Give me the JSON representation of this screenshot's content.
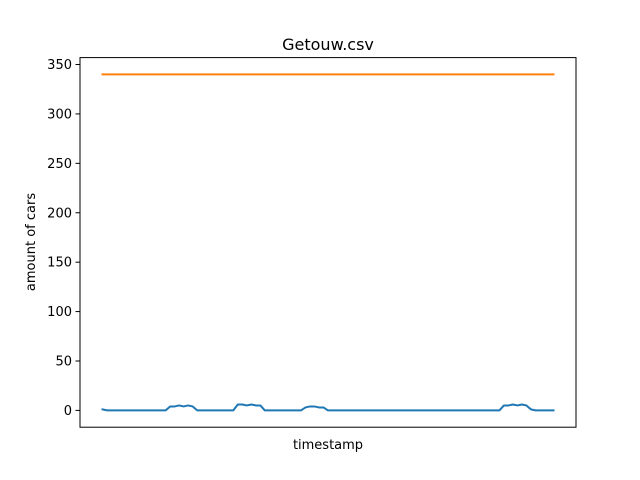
{
  "chart_data": {
    "type": "line",
    "title": "Getouw.csv",
    "xlabel": "timestamp",
    "ylabel": "amount of cars",
    "ylim": [
      -17,
      357
    ],
    "yticks": [
      0,
      50,
      100,
      150,
      200,
      250,
      300,
      350
    ],
    "xticks_shown": false,
    "grid": false,
    "x": [
      0,
      1,
      2,
      3,
      4,
      5,
      6,
      7,
      8,
      9,
      10,
      11,
      12,
      13,
      14,
      15,
      16,
      17,
      18,
      19,
      20,
      21,
      22,
      23,
      24,
      25,
      26,
      27,
      28,
      29,
      30,
      31,
      32,
      33,
      34,
      35,
      36,
      37,
      38,
      39,
      40,
      41,
      42,
      43,
      44,
      45,
      46,
      47,
      48,
      49,
      50,
      51,
      52,
      53,
      54,
      55,
      56,
      57,
      58,
      59,
      60,
      61,
      62,
      63,
      64,
      65,
      66,
      67,
      68,
      69,
      70,
      71,
      72,
      73,
      74,
      75,
      76,
      77,
      78,
      79,
      80,
      81,
      82,
      83,
      84,
      85,
      86,
      87,
      88,
      89,
      90,
      91,
      92,
      93,
      94,
      95,
      96,
      97,
      98,
      99,
      100
    ],
    "series": [
      {
        "color": "#1f77b4",
        "values": [
          1,
          0,
          0,
          0,
          0,
          0,
          0,
          0,
          0,
          0,
          0,
          0,
          0,
          0,
          0,
          4,
          4,
          5,
          4,
          5,
          4,
          0,
          0,
          0,
          0,
          0,
          0,
          0,
          0,
          0,
          6,
          6,
          5,
          6,
          5,
          5,
          0,
          0,
          0,
          0,
          0,
          0,
          0,
          0,
          0,
          3,
          4,
          4,
          3,
          3,
          0,
          0,
          0,
          0,
          0,
          0,
          0,
          0,
          0,
          0,
          0,
          0,
          0,
          0,
          0,
          0,
          0,
          0,
          0,
          0,
          0,
          0,
          0,
          0,
          0,
          0,
          0,
          0,
          0,
          0,
          0,
          0,
          0,
          0,
          0,
          0,
          0,
          0,
          0,
          5,
          5,
          6,
          5,
          6,
          5,
          1,
          0,
          0,
          0,
          0,
          0
        ]
      },
      {
        "color": "#ff7f0e",
        "values": [
          340,
          340,
          340,
          340,
          340,
          340,
          340,
          340,
          340,
          340,
          340,
          340,
          340,
          340,
          340,
          340,
          340,
          340,
          340,
          340,
          340,
          340,
          340,
          340,
          340,
          340,
          340,
          340,
          340,
          340,
          340,
          340,
          340,
          340,
          340,
          340,
          340,
          340,
          340,
          340,
          340,
          340,
          340,
          340,
          340,
          340,
          340,
          340,
          340,
          340,
          340,
          340,
          340,
          340,
          340,
          340,
          340,
          340,
          340,
          340,
          340,
          340,
          340,
          340,
          340,
          340,
          340,
          340,
          340,
          340,
          340,
          340,
          340,
          340,
          340,
          340,
          340,
          340,
          340,
          340,
          340,
          340,
          340,
          340,
          340,
          340,
          340,
          340,
          340,
          340,
          340,
          340,
          340,
          340,
          340,
          340,
          340,
          340,
          340,
          340,
          340
        ]
      }
    ]
  }
}
